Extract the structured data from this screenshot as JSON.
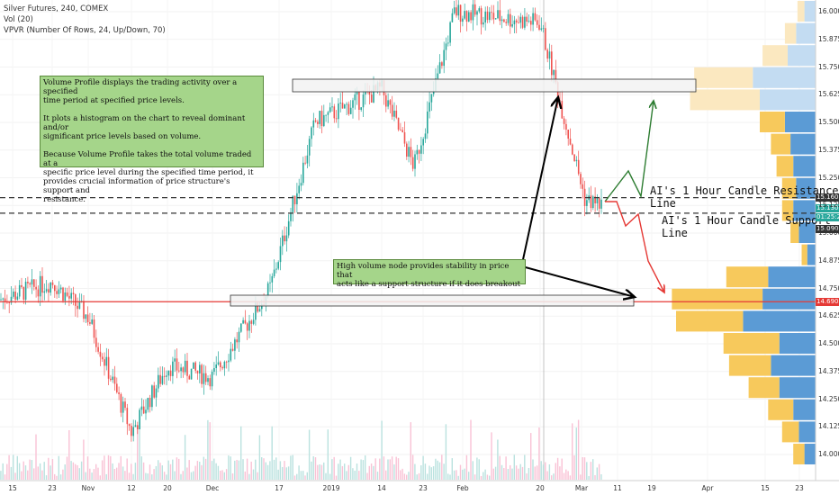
{
  "header": {
    "symbol_line": "Silver Futures, 240, COMEX",
    "vol_line": "Vol (20)",
    "vpvr_line": "VPVR (Number Of Rows, 24, Up/Down, 70)"
  },
  "annotations": {
    "volume_profile_note": "Volume Profile displays the trading activity over a specified\ntime period at specified price levels.\n\nIt plots a histogram on the chart to reveal dominant and/or\nsignificant price levels based on volume.\n\nBecause Volume Profile takes the total volume traded at a\nspecific price level during the specified time period, it\nprovides crucial information of price structure's support and\nresistance.",
    "hvn_note": "High volume node provides stability in price that\nacts like a support structure if it does breakout",
    "resistance_label": "AI's 1 Hour Candle Resistance Line",
    "support_label": "AI's 1 Hour Candle Support Line"
  },
  "price_tags": {
    "resistance": "15.160",
    "last": "15.130",
    "timer": "01:25:20",
    "support": "15.090",
    "hvn": "14.690"
  },
  "colors": {
    "up": "#26a69a",
    "down": "#ef5350",
    "vp_up": "#f7c95c",
    "vp_down": "#5b9bd5",
    "vp_up_light": "#fbe8c0",
    "vp_down_light": "#c3dcf2",
    "red_line": "#e53935",
    "green_arrow": "#2e7d32",
    "note_bg": "#a5d58a"
  },
  "chart_data": {
    "type": "candlestick",
    "symbol": "Silver Futures",
    "timeframe": "240",
    "exchange": "COMEX",
    "yaxis": {
      "ticks": [
        "16.000",
        "15.875",
        "15.750",
        "15.625",
        "15.500",
        "15.375",
        "15.250",
        "15.125",
        "15.000",
        "14.875",
        "14.750",
        "14.625",
        "14.500",
        "14.375",
        "14.250",
        "14.125",
        "14.000"
      ],
      "range": [
        13.95,
        16.05
      ]
    },
    "xaxis": {
      "ticks": [
        "15",
        "23",
        "Nov",
        "12",
        "20",
        "Dec",
        "17",
        "2019",
        "14",
        "23",
        "Feb",
        "20",
        "Mar",
        "11",
        "19",
        "Apr",
        "15",
        "23"
      ]
    },
    "close_path": [
      [
        "15",
        14.7
      ],
      [
        "23",
        14.78
      ],
      [
        "Nov",
        14.6
      ],
      [
        "12",
        14.3
      ],
      [
        "20",
        14.4
      ],
      [
        "Dec",
        14.45
      ],
      [
        "17",
        14.7
      ],
      [
        "2019",
        15.5
      ],
      [
        "14",
        15.62
      ],
      [
        "23",
        15.35
      ],
      [
        "Feb",
        15.95
      ],
      [
        "20",
        15.9
      ],
      [
        "Mar",
        15.15
      ],
      [
        "11",
        15.13
      ]
    ],
    "horizontal_lines": [
      {
        "label": "AI's 1 Hour Candle Resistance Line",
        "value": 15.16
      },
      {
        "label": "AI's 1 Hour Candle Support Line",
        "value": 15.09
      },
      {
        "label": "",
        "value": 14.69
      }
    ],
    "volume_profile": [
      {
        "price": 16.0,
        "up": 5,
        "down": 8
      },
      {
        "price": 15.9,
        "up": 8,
        "down": 14
      },
      {
        "price": 15.8,
        "up": 18,
        "down": 20
      },
      {
        "price": 15.7,
        "up": 42,
        "down": 45
      },
      {
        "price": 15.6,
        "up": 50,
        "down": 40
      },
      {
        "price": 15.5,
        "up": 18,
        "down": 22
      },
      {
        "price": 15.4,
        "up": 14,
        "down": 18
      },
      {
        "price": 15.3,
        "up": 12,
        "down": 16
      },
      {
        "price": 15.2,
        "up": 10,
        "down": 14
      },
      {
        "price": 15.1,
        "up": 8,
        "down": 16
      },
      {
        "price": 15.0,
        "up": 6,
        "down": 12
      },
      {
        "price": 14.9,
        "up": 4,
        "down": 6
      },
      {
        "price": 14.8,
        "up": 30,
        "down": 34
      },
      {
        "price": 14.7,
        "up": 65,
        "down": 38
      },
      {
        "price": 14.6,
        "up": 48,
        "down": 52
      },
      {
        "price": 14.5,
        "up": 40,
        "down": 26
      },
      {
        "price": 14.4,
        "up": 30,
        "down": 32
      },
      {
        "price": 14.3,
        "up": 22,
        "down": 26
      },
      {
        "price": 14.2,
        "up": 18,
        "down": 16
      },
      {
        "price": 14.1,
        "up": 12,
        "down": 12
      },
      {
        "price": 14.0,
        "up": 8,
        "down": 8
      }
    ]
  }
}
